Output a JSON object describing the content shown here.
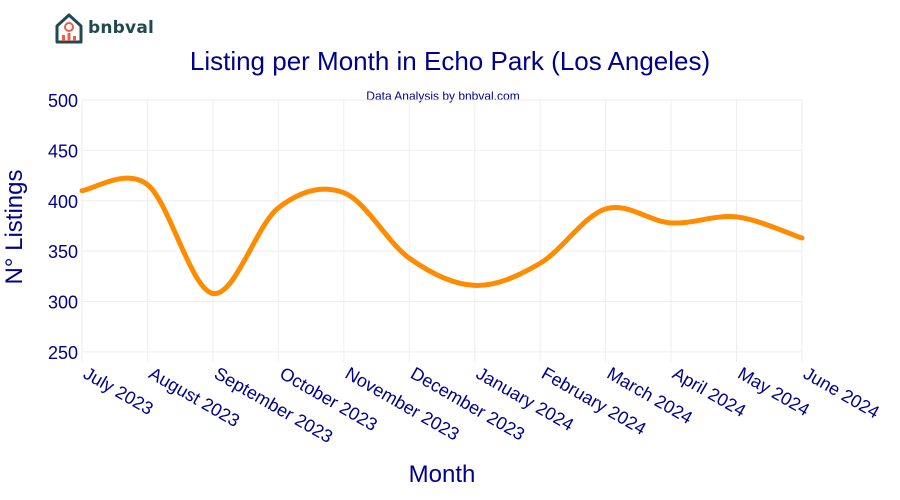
{
  "brand": {
    "name": "bnbval"
  },
  "chart_data": {
    "type": "line",
    "title": "Listing per Month in Echo Park (Los Angeles)",
    "subtitle": "Data Analysis by bnbval.com",
    "xlabel": "Month",
    "ylabel": "N° Listings",
    "categories": [
      "July 2023",
      "August 2023",
      "September 2023",
      "October 2023",
      "November 2023",
      "December 2023",
      "January 2024",
      "February 2024",
      "March 2024",
      "April 2024",
      "May 2024",
      "June 2024"
    ],
    "series": [
      {
        "name": "Listings",
        "values": [
          410,
          416,
          308,
          393,
          408,
          343,
          316,
          338,
          392,
          378,
          384,
          363
        ]
      }
    ],
    "ylim": [
      240,
      500
    ],
    "yticks": [
      250,
      300,
      350,
      400,
      450,
      500
    ],
    "grid": true,
    "line_color": "#ff8c00",
    "text_color": "#00008b",
    "grid_color": "#eeeeee"
  }
}
